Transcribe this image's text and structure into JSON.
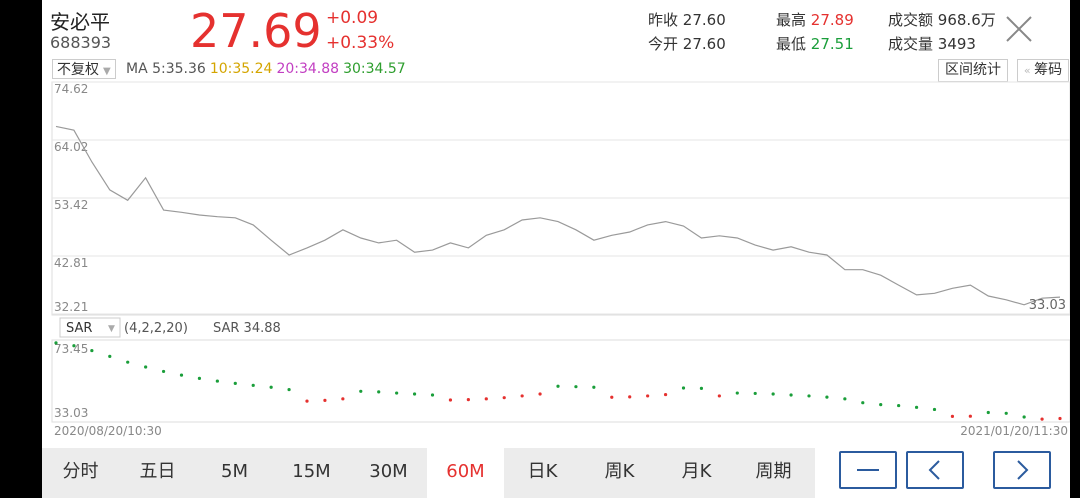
{
  "header": {
    "name": "安必平",
    "code": "688393",
    "price": "27.69",
    "change": "+0.09",
    "change_pct": "+0.33%",
    "stats": [
      {
        "label": "昨收",
        "value": "27.60"
      },
      {
        "label": "最高",
        "value": "27.89"
      },
      {
        "label": "成交额",
        "value": "968.6万"
      },
      {
        "label": "今开",
        "value": "27.60"
      },
      {
        "label": "最低",
        "value": "27.51"
      },
      {
        "label": "成交量",
        "value": "3493"
      }
    ]
  },
  "toolbar": {
    "adjust": "不复权",
    "ma_title": "MA",
    "ma": [
      {
        "label": "5:",
        "value": "35.36"
      },
      {
        "label": "10:",
        "value": "35.24"
      },
      {
        "label": "20:",
        "value": "34.88"
      },
      {
        "label": "30:",
        "value": "34.57"
      }
    ],
    "range_stats": "区间统计",
    "chips": "筹码"
  },
  "chart_data": [
    {
      "type": "line",
      "ylim": [
        32.21,
        74.62
      ],
      "yticks": [
        74.62,
        64.02,
        53.42,
        42.81,
        32.21
      ],
      "grid": true,
      "annotation": "33.03",
      "series": [
        {
          "color": "#9a9a9a",
          "values": [
            66.5,
            65.8,
            60.0,
            54.9,
            53.0,
            57.1,
            51.2,
            50.8,
            50.3,
            50.0,
            49.8,
            48.5,
            45.7,
            43.0,
            44.3,
            45.7,
            47.6,
            46.1,
            45.2,
            45.7,
            43.5,
            43.9,
            45.2,
            44.3,
            46.6,
            47.6,
            49.4,
            49.8,
            49.1,
            47.6,
            45.7,
            46.6,
            47.2,
            48.5,
            49.1,
            48.3,
            46.1,
            46.5,
            46.1,
            44.8,
            43.9,
            44.5,
            43.5,
            43.0,
            40.3,
            40.3,
            39.3,
            37.5,
            35.7,
            36.0,
            36.9,
            37.5,
            35.5,
            34.8,
            33.9,
            35.1,
            35.3
          ]
        }
      ]
    },
    {
      "type": "dots",
      "indicator": "SAR",
      "params": "(4,2,2,20)",
      "current": "SAR 34.88",
      "ylim": [
        33.03,
        73.45
      ],
      "yticks": [
        73.45,
        33.03
      ],
      "series": [
        {
          "color": "#555555",
          "values": [
            73.0,
            71.5,
            69.0,
            66.0,
            63.0,
            60.5,
            58.2,
            56.3,
            54.6,
            53.2,
            52.0,
            51.0,
            50.0,
            48.8,
            42.8,
            43.2,
            44.0,
            47.9,
            47.6,
            47.0,
            46.5,
            46.0,
            43.4,
            43.6,
            44.0,
            44.6,
            45.5,
            46.5,
            50.5,
            50.3,
            50.0,
            44.8,
            45.0,
            45.5,
            46.2,
            49.6,
            49.4,
            45.5,
            47.0,
            46.8,
            46.5,
            46.0,
            45.5,
            44.9,
            44.0,
            42.0,
            41.0,
            40.5,
            39.6,
            38.5,
            34.9,
            35.0,
            36.9,
            36.5,
            34.6,
            33.5,
            33.8
          ]
        }
      ]
    }
  ],
  "x_labels": [
    "2020/08/20/10:30",
    "2021/01/20/11:30"
  ],
  "tabs": [
    "分时",
    "五日",
    "5M",
    "15M",
    "30M",
    "60M",
    "日K",
    "周K",
    "月K",
    "周期"
  ],
  "selected_tab": 5
}
